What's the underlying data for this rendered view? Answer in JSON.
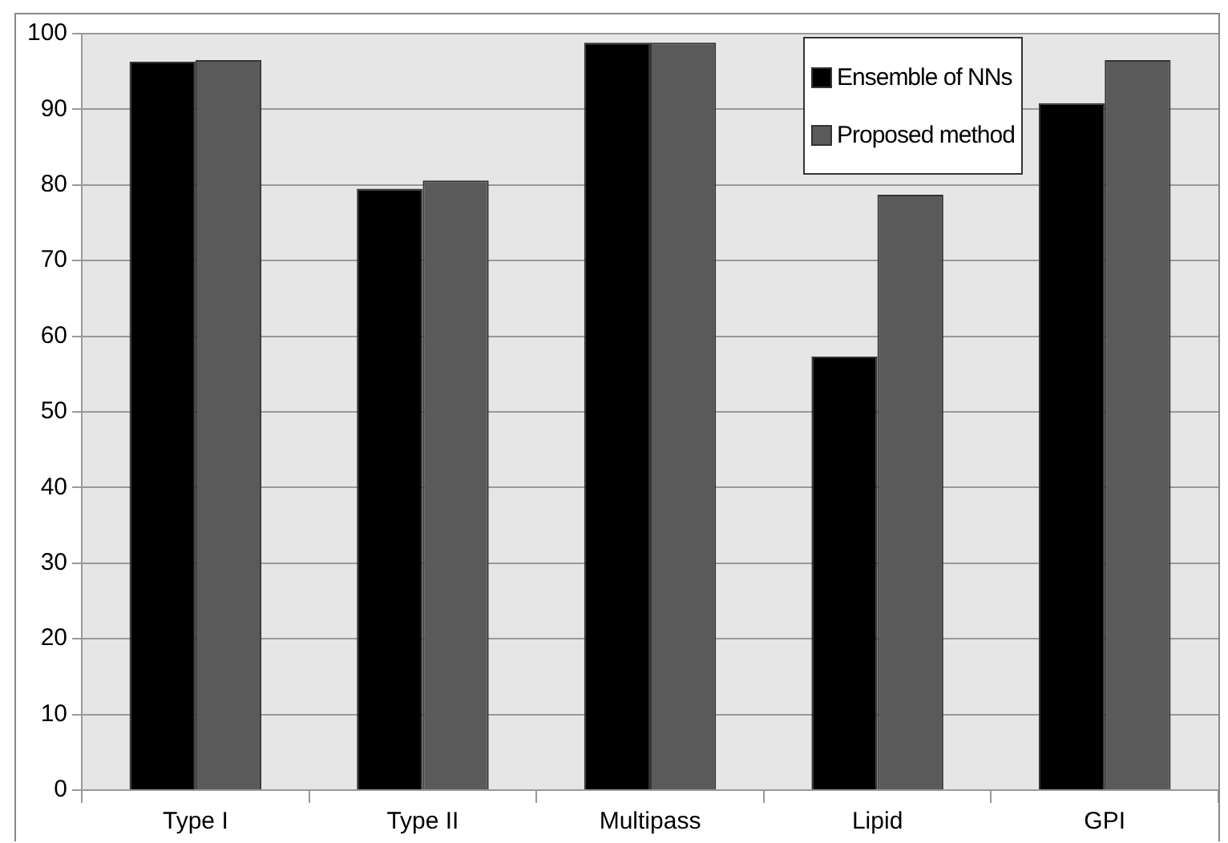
{
  "chart_data": {
    "type": "bar",
    "categories": [
      "Type I",
      "Type II",
      "Multipass",
      "Lipid",
      "GPI"
    ],
    "series": [
      {
        "name": "Ensemble of NNs",
        "color": "#000000",
        "values": [
          96.3,
          79.5,
          98.8,
          57.3,
          90.8
        ]
      },
      {
        "name": "Proposed method",
        "color": "#5a5a5a",
        "values": [
          96.5,
          80.6,
          98.8,
          78.7,
          96.5
        ]
      }
    ],
    "ylim": [
      0,
      100
    ],
    "yticks": [
      0,
      10,
      20,
      30,
      40,
      50,
      60,
      70,
      80,
      90,
      100
    ],
    "grid": "y",
    "legend": "top right"
  }
}
